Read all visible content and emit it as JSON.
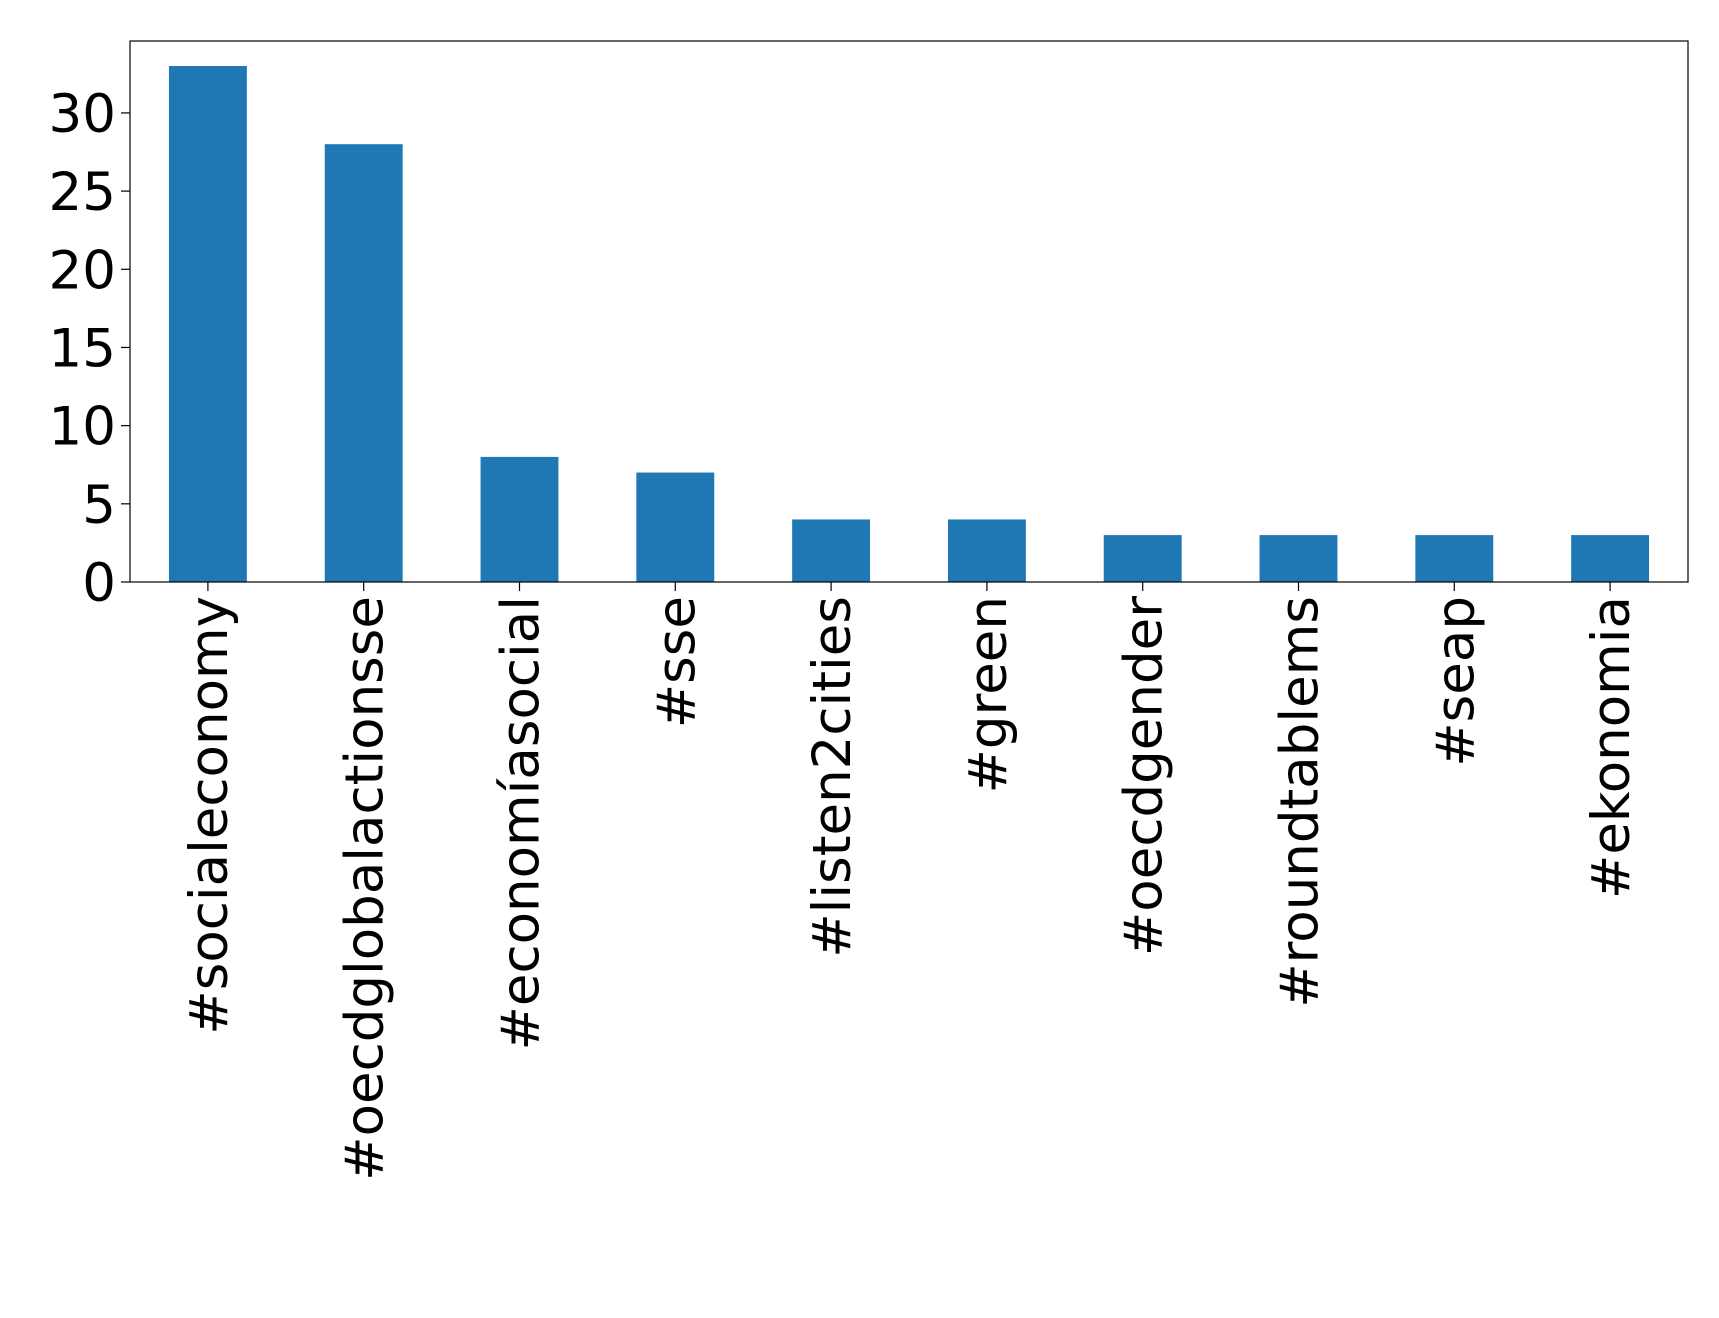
{
  "chart_data": {
    "type": "bar",
    "categories": [
      "#socialeconomy",
      "#oecdglobalactionsse",
      "#economíasocial",
      "#sse",
      "#listen2cities",
      "#green",
      "#oecdgender",
      "#roundtablems",
      "#seap",
      "#ekonomia"
    ],
    "values": [
      33,
      28,
      8,
      7,
      4,
      4,
      3,
      3,
      3,
      3
    ],
    "color": "#1f77b4",
    "ylim": [
      0,
      34.6
    ],
    "yticks": [
      0,
      5,
      10,
      15,
      20,
      25,
      30
    ],
    "grid": false
  }
}
